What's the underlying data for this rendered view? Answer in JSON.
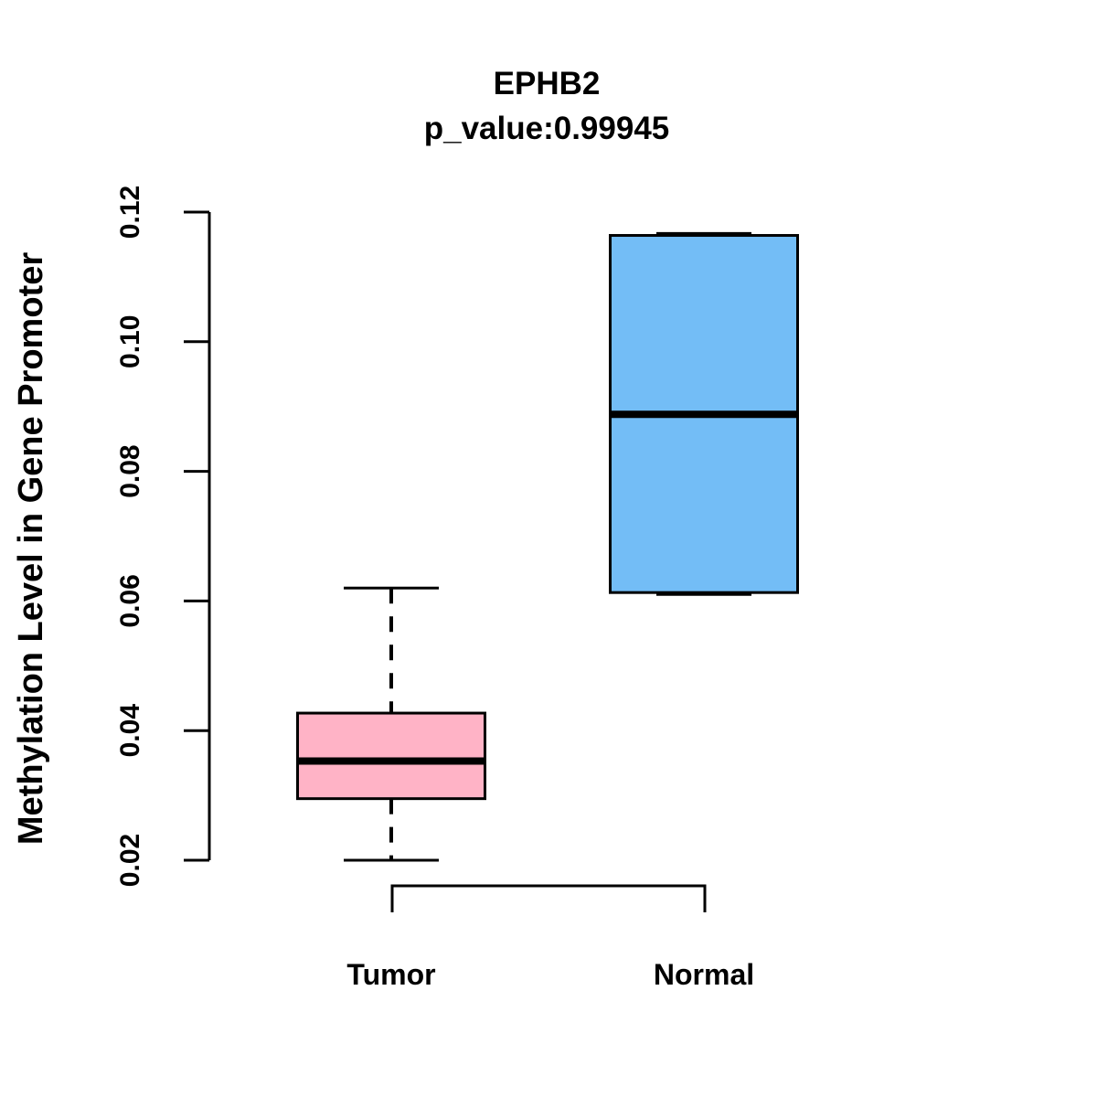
{
  "chart_data": {
    "type": "boxplot",
    "title": "EPHB2",
    "subtitle": "p_value:0.99945",
    "ylabel": "Methylation Level in Gene Promoter",
    "ylim": [
      0.02,
      0.12
    ],
    "yticks": [
      {
        "value": 0.02,
        "label": "0.02"
      },
      {
        "value": 0.04,
        "label": "0.04"
      },
      {
        "value": 0.06,
        "label": "0.06"
      },
      {
        "value": 0.08,
        "label": "0.08"
      },
      {
        "value": 0.1,
        "label": "0.10"
      },
      {
        "value": 0.12,
        "label": "0.12"
      }
    ],
    "categories": [
      "Tumor",
      "Normal"
    ],
    "series": [
      {
        "name": "Tumor",
        "color": "#FFB3C6",
        "whisker_low": 0.02,
        "q1": 0.0295,
        "median": 0.0353,
        "q3": 0.0427,
        "whisker_high": 0.062
      },
      {
        "name": "Normal",
        "color": "#73BDF6",
        "whisker_low": 0.061,
        "q1": 0.0613,
        "median": 0.0888,
        "q3": 0.1164,
        "whisker_high": 0.1167
      }
    ],
    "colors": {
      "line": "#000000",
      "background": "#FFFFFF"
    },
    "legend": "none",
    "grid": false
  }
}
